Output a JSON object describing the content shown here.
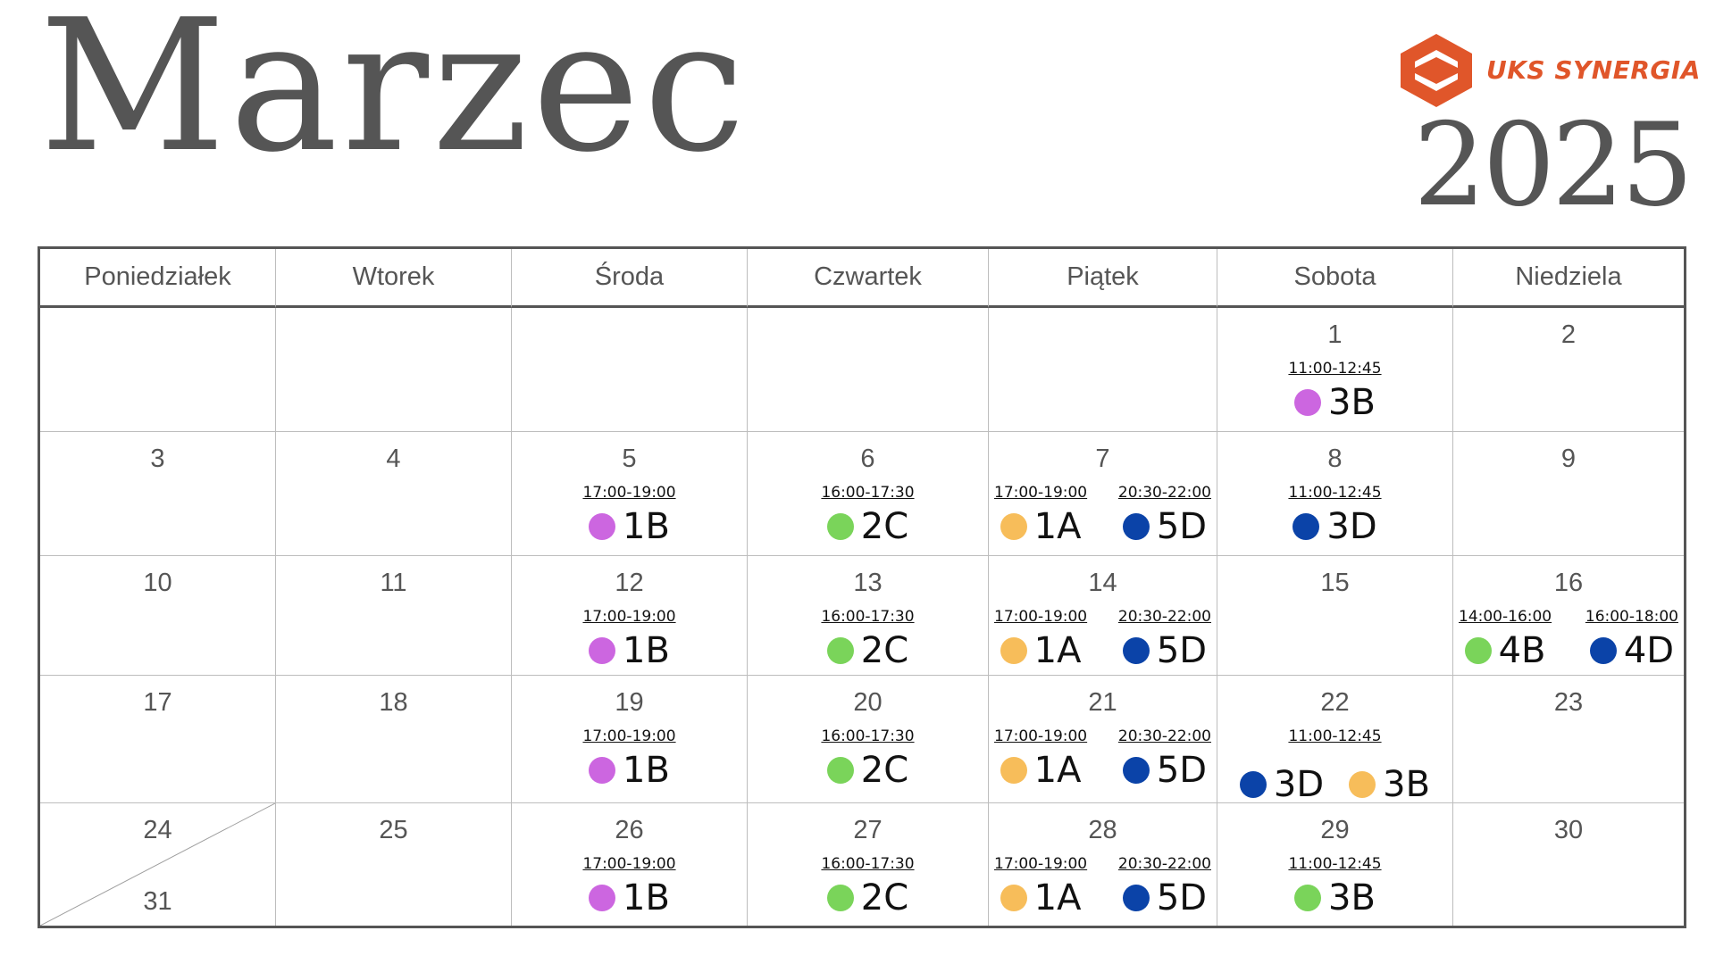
{
  "header": {
    "month": "Marzec",
    "year": "2025",
    "logo_text": "UKS SYNERGIA",
    "logo_color": "#e0562a"
  },
  "weekdays": [
    "Poniedziałek",
    "Wtorek",
    "Środa",
    "Czwartek",
    "Piątek",
    "Sobota",
    "Niedziela"
  ],
  "colors": {
    "purple": "#cc66e0",
    "green": "#7ad45a",
    "yellow": "#f7bd5a",
    "blue": "#0b43a8"
  },
  "days": {
    "d1": {
      "num": "1",
      "events": [
        {
          "time": "11:00-12:45",
          "group": "3B",
          "color": "purple"
        }
      ]
    },
    "d2": {
      "num": "2"
    },
    "d3": {
      "num": "3"
    },
    "d4": {
      "num": "4"
    },
    "d5": {
      "num": "5",
      "events": [
        {
          "time": "17:00-19:00",
          "group": "1B",
          "color": "purple"
        }
      ]
    },
    "d6": {
      "num": "6",
      "events": [
        {
          "time": "16:00-17:30",
          "group": "2C",
          "color": "green"
        }
      ]
    },
    "d7": {
      "num": "7",
      "events": [
        {
          "time": "17:00-19:00",
          "group": "1A",
          "color": "yellow"
        },
        {
          "time": "20:30-22:00",
          "group": "5D",
          "color": "blue"
        }
      ]
    },
    "d8": {
      "num": "8",
      "events": [
        {
          "time": "11:00-12:45",
          "group": "3D",
          "color": "blue"
        }
      ]
    },
    "d9": {
      "num": "9"
    },
    "d10": {
      "num": "10"
    },
    "d11": {
      "num": "11"
    },
    "d12": {
      "num": "12",
      "events": [
        {
          "time": "17:00-19:00",
          "group": "1B",
          "color": "purple"
        }
      ]
    },
    "d13": {
      "num": "13",
      "events": [
        {
          "time": "16:00-17:30",
          "group": "2C",
          "color": "green"
        }
      ]
    },
    "d14": {
      "num": "14",
      "events": [
        {
          "time": "17:00-19:00",
          "group": "1A",
          "color": "yellow"
        },
        {
          "time": "20:30-22:00",
          "group": "5D",
          "color": "blue"
        }
      ]
    },
    "d15": {
      "num": "15"
    },
    "d16": {
      "num": "16",
      "events": [
        {
          "time": "14:00-16:00",
          "group": "4B",
          "color": "green"
        },
        {
          "time": "16:00-18:00",
          "group": "4D",
          "color": "blue"
        }
      ]
    },
    "d17": {
      "num": "17"
    },
    "d18": {
      "num": "18"
    },
    "d19": {
      "num": "19",
      "events": [
        {
          "time": "17:00-19:00",
          "group": "1B",
          "color": "purple"
        }
      ]
    },
    "d20": {
      "num": "20",
      "events": [
        {
          "time": "16:00-17:30",
          "group": "2C",
          "color": "green"
        }
      ]
    },
    "d21": {
      "num": "21",
      "events": [
        {
          "time": "17:00-19:00",
          "group": "1A",
          "color": "yellow"
        },
        {
          "time": "20:30-22:00",
          "group": "5D",
          "color": "blue"
        }
      ]
    },
    "d22": {
      "num": "22",
      "time": "11:00-12:45",
      "pair": [
        {
          "group": "3D",
          "color": "blue"
        },
        {
          "group": "3B",
          "color": "yellow"
        }
      ]
    },
    "d23": {
      "num": "23"
    },
    "d24": {
      "num": "24",
      "num_b": "31"
    },
    "d25": {
      "num": "25"
    },
    "d26": {
      "num": "26",
      "events": [
        {
          "time": "17:00-19:00",
          "group": "1B",
          "color": "purple"
        }
      ]
    },
    "d27": {
      "num": "27",
      "events": [
        {
          "time": "16:00-17:30",
          "group": "2C",
          "color": "green"
        }
      ]
    },
    "d28": {
      "num": "28",
      "events": [
        {
          "time": "17:00-19:00",
          "group": "1A",
          "color": "yellow"
        },
        {
          "time": "20:30-22:00",
          "group": "5D",
          "color": "blue"
        }
      ]
    },
    "d29": {
      "num": "29",
      "events": [
        {
          "time": "11:00-12:45",
          "group": "3B",
          "color": "green"
        }
      ]
    },
    "d30": {
      "num": "30"
    }
  }
}
